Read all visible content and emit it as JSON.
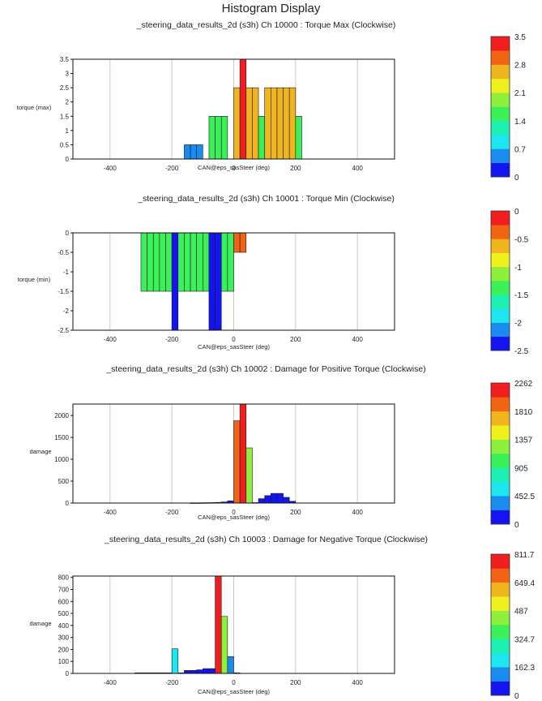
{
  "window": {
    "title": "Histogram Display"
  },
  "palette": {
    "edge": "#1a1a2a",
    "grid": "#c8c8c8",
    "bands": [
      "#1414f0",
      "#1a8cf0",
      "#1ee6f0",
      "#1ef0b4",
      "#3cf05a",
      "#8cf03c",
      "#f0f01e",
      "#f0b41e",
      "#f06414",
      "#f01e1e"
    ]
  },
  "chart_data": [
    {
      "type": "bar",
      "title": "_steering_data_results_2d (s3h) Ch 10000 : Torque Max (Clockwise)",
      "xlabel": "CAN@eps_sasSteer (deg)",
      "ylabel": "torque (max)",
      "xlim": [
        -520,
        520
      ],
      "ylim": [
        0,
        3.5
      ],
      "xticks": [
        -400,
        -200,
        0,
        200,
        400
      ],
      "yticks": [
        0,
        0.5,
        1,
        1.5,
        2,
        2.5,
        3,
        3.5
      ],
      "ytick_labels": [
        "0",
        "0.5",
        "1",
        "1.5",
        "2",
        "2.5",
        "3",
        "3.5"
      ],
      "bin_width": 20,
      "bins": [
        {
          "x": -150,
          "y": 0.5
        },
        {
          "x": -130,
          "y": 0.5
        },
        {
          "x": -110,
          "y": 0.5
        },
        {
          "x": -70,
          "y": 1.5
        },
        {
          "x": -50,
          "y": 1.5
        },
        {
          "x": -30,
          "y": 1.5
        },
        {
          "x": 10,
          "y": 2.5
        },
        {
          "x": 30,
          "y": 3.5
        },
        {
          "x": 50,
          "y": 2.5
        },
        {
          "x": 70,
          "y": 2.5
        },
        {
          "x": 90,
          "y": 1.5
        },
        {
          "x": 110,
          "y": 2.5
        },
        {
          "x": 130,
          "y": 2.5
        },
        {
          "x": 150,
          "y": 2.5
        },
        {
          "x": 170,
          "y": 2.5
        },
        {
          "x": 190,
          "y": 2.5
        },
        {
          "x": 210,
          "y": 1.5
        }
      ],
      "colorbar": {
        "min": 0,
        "max": 3.5,
        "labels": [
          "3.5",
          "2.8",
          "2.1",
          "1.4",
          "0.7",
          "0"
        ]
      }
    },
    {
      "type": "bar",
      "title": "_steering_data_results_2d (s3h) Ch 10001 : Torque Min (Clockwise)",
      "xlabel": "CAN@eps_sasSteer (deg)",
      "ylabel": "torque (min)",
      "xlim": [
        -520,
        520
      ],
      "ylim": [
        -2.5,
        0
      ],
      "xticks": [
        -400,
        -200,
        0,
        200,
        400
      ],
      "yticks": [
        -2.5,
        -2,
        -1.5,
        -1,
        -0.5,
        0
      ],
      "ytick_labels": [
        "-2.5",
        "-2",
        "-1.5",
        "-1",
        "-0.5",
        "0"
      ],
      "bin_width": 20,
      "bins": [
        {
          "x": -290,
          "y": -1.5
        },
        {
          "x": -270,
          "y": -1.5
        },
        {
          "x": -250,
          "y": -1.5
        },
        {
          "x": -230,
          "y": -1.5
        },
        {
          "x": -210,
          "y": -1.5
        },
        {
          "x": -190,
          "y": -2.5
        },
        {
          "x": -170,
          "y": -1.5
        },
        {
          "x": -150,
          "y": -1.5
        },
        {
          "x": -130,
          "y": -1.5
        },
        {
          "x": -110,
          "y": -1.5
        },
        {
          "x": -90,
          "y": -1.5
        },
        {
          "x": -70,
          "y": -2.5
        },
        {
          "x": -50,
          "y": -2.5
        },
        {
          "x": -30,
          "y": -1.5
        },
        {
          "x": -10,
          "y": -1.5
        },
        {
          "x": 10,
          "y": -0.5
        },
        {
          "x": 30,
          "y": -0.5
        }
      ],
      "colorbar": {
        "min": -2.5,
        "max": 0,
        "labels": [
          "0",
          "-0.5",
          "-1",
          "-1.5",
          "-2",
          "-2.5"
        ]
      }
    },
    {
      "type": "bar",
      "title": "_steering_data_results_2d (s3h) Ch 10002 : Damage for Positive Torque (Clockwise)",
      "xlabel": "CAN@eps_sasSteer (deg)",
      "ylabel": "damage",
      "xlim": [
        -520,
        520
      ],
      "ylim": [
        0,
        2262
      ],
      "xticks": [
        -400,
        -200,
        0,
        200,
        400
      ],
      "yticks": [
        0,
        500,
        1000,
        1500,
        2000
      ],
      "ytick_labels": [
        "0",
        "500",
        "1000",
        "1500",
        "2000"
      ],
      "bin_width": 20,
      "bins": [
        {
          "x": -130,
          "y": 5
        },
        {
          "x": -110,
          "y": 5
        },
        {
          "x": -90,
          "y": 8
        },
        {
          "x": -70,
          "y": 10
        },
        {
          "x": -50,
          "y": 15
        },
        {
          "x": -30,
          "y": 25
        },
        {
          "x": -10,
          "y": 50
        },
        {
          "x": 10,
          "y": 1880
        },
        {
          "x": 30,
          "y": 2262
        },
        {
          "x": 50,
          "y": 1260
        },
        {
          "x": 70,
          "y": 10
        },
        {
          "x": 90,
          "y": 100
        },
        {
          "x": 110,
          "y": 170
        },
        {
          "x": 130,
          "y": 220
        },
        {
          "x": 150,
          "y": 220
        },
        {
          "x": 170,
          "y": 130
        },
        {
          "x": 190,
          "y": 40
        }
      ],
      "colorbar": {
        "min": 0,
        "max": 2262,
        "labels": [
          "2262",
          "1810",
          "1357",
          "905",
          "452.5",
          "0"
        ]
      }
    },
    {
      "type": "bar",
      "title": "_steering_data_results_2d (s3h) Ch 10003 : Damage for Negative Torque (Clockwise)",
      "xlabel": "CAN@eps_sasSteer (deg)",
      "ylabel": "damage",
      "xlim": [
        -520,
        520
      ],
      "ylim": [
        0,
        811.7
      ],
      "xticks": [
        -400,
        -200,
        0,
        200,
        400
      ],
      "yticks": [
        0,
        100,
        200,
        300,
        400,
        500,
        600,
        700,
        800
      ],
      "ytick_labels": [
        "0",
        "100",
        "200",
        "300",
        "400",
        "500",
        "600",
        "700",
        "800"
      ],
      "bin_width": 20,
      "bins": [
        {
          "x": -310,
          "y": 5
        },
        {
          "x": -290,
          "y": 5
        },
        {
          "x": -270,
          "y": 5
        },
        {
          "x": -250,
          "y": 5
        },
        {
          "x": -230,
          "y": 5
        },
        {
          "x": -210,
          "y": 5
        },
        {
          "x": -190,
          "y": 205
        },
        {
          "x": -170,
          "y": 5
        },
        {
          "x": -150,
          "y": 25
        },
        {
          "x": -130,
          "y": 25
        },
        {
          "x": -110,
          "y": 30
        },
        {
          "x": -90,
          "y": 40
        },
        {
          "x": -70,
          "y": 40
        },
        {
          "x": -50,
          "y": 811.7
        },
        {
          "x": -30,
          "y": 475
        },
        {
          "x": -10,
          "y": 140
        },
        {
          "x": 10,
          "y": 5
        }
      ],
      "colorbar": {
        "min": 0,
        "max": 811.7,
        "labels": [
          "811.7",
          "649.4",
          "487",
          "324.7",
          "162.3",
          "0"
        ]
      }
    }
  ]
}
